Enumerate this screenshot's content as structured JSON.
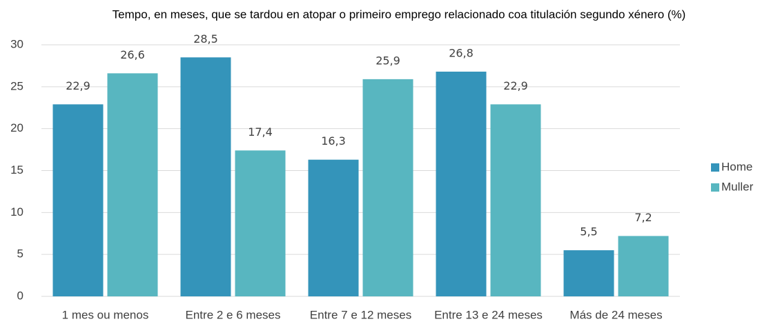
{
  "chart_data": {
    "type": "bar",
    "title": "Tempo, en meses, que se tardou en atopar o primeiro emprego relacionado coa titulación segundo xénero (%)",
    "categories": [
      "1 mes ou menos",
      "Entre 2 e 6 meses",
      "Entre 7 e 12 meses",
      "Entre 13 e 24 meses",
      "Más de 24 meses"
    ],
    "series": [
      {
        "name": "Home",
        "color": "#3494ba",
        "values": [
          22.9,
          28.5,
          16.3,
          26.8,
          5.5
        ],
        "value_labels": [
          "22,9",
          "28,5",
          "16,3",
          "26,8",
          "5,5"
        ]
      },
      {
        "name": "Muller",
        "color": "#58b6c0",
        "values": [
          26.6,
          17.4,
          25.9,
          22.9,
          7.2
        ],
        "value_labels": [
          "26,6",
          "17,4",
          "25,9",
          "22,9",
          "7,2"
        ]
      }
    ],
    "ylim": [
      0,
      30
    ],
    "yticks": [
      0,
      5,
      10,
      15,
      20,
      25,
      30
    ],
    "grid": true,
    "legend": "right"
  }
}
